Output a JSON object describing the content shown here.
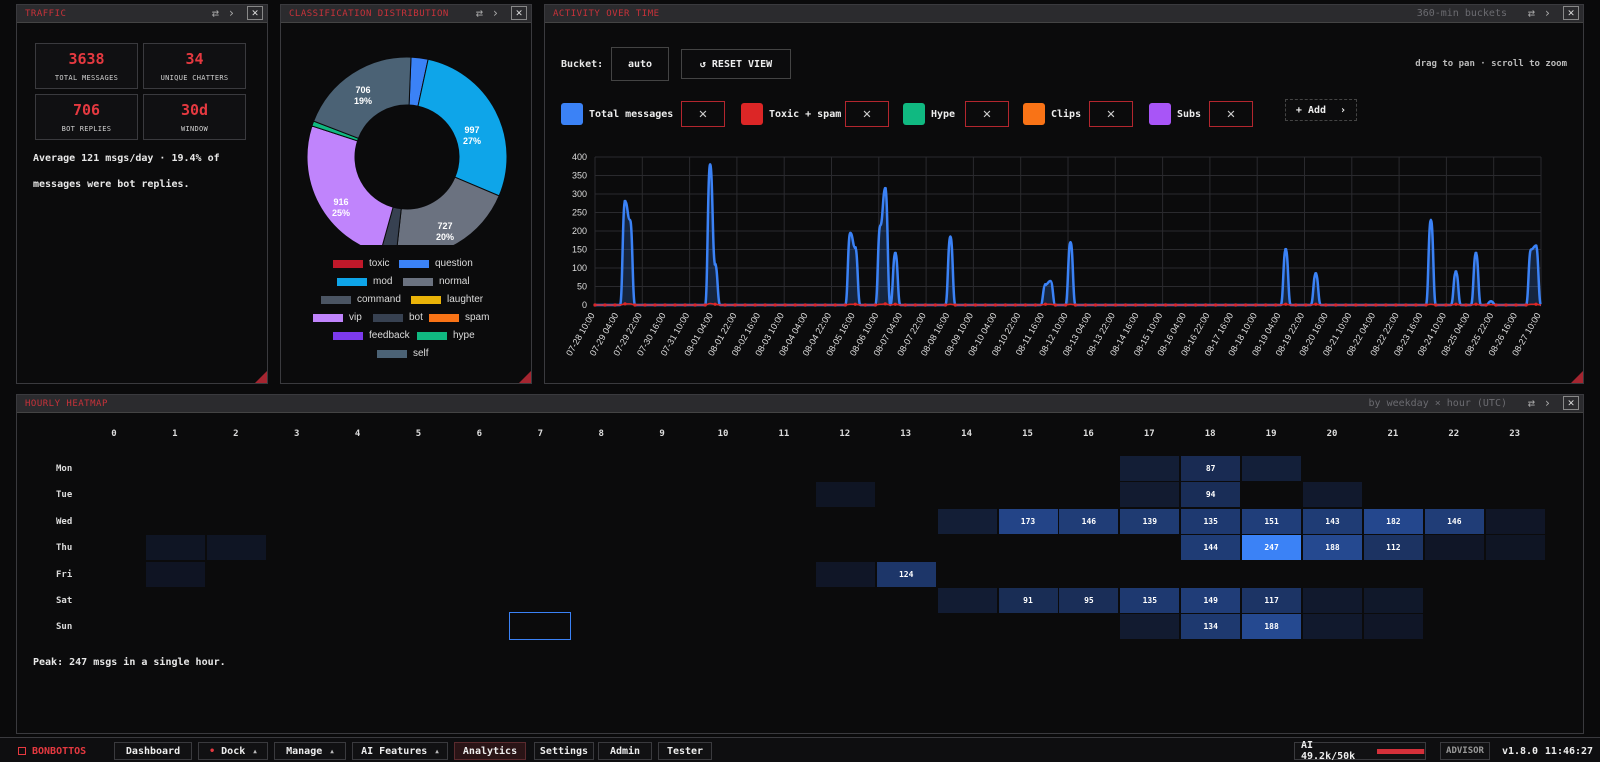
{
  "traffic": {
    "title": "TRAFFIC",
    "stats": [
      {
        "value": "3638",
        "label": "TOTAL MESSAGES"
      },
      {
        "value": "34",
        "label": "UNIQUE CHATTERS"
      },
      {
        "value": "706",
        "label": "BOT REPLIES"
      },
      {
        "value": "30d",
        "label": "WINDOW"
      }
    ],
    "summary_line1": "Average 121 msgs/day · 19.4% of",
    "summary_line2": "messages were bot replies."
  },
  "classification": {
    "title": "CLASSIFICATION DISTRIBUTION",
    "legend": [
      {
        "label": "toxic",
        "color": "#c0182a"
      },
      {
        "label": "question",
        "color": "#3b82f6"
      },
      {
        "label": "mod",
        "color": "#0ea5e9"
      },
      {
        "label": "normal",
        "color": "#6b7280"
      },
      {
        "label": "command",
        "color": "#4b5563"
      },
      {
        "label": "laughter",
        "color": "#eab308"
      },
      {
        "label": "vip",
        "color": "#c084fc"
      },
      {
        "label": "bot",
        "color": "#374151"
      },
      {
        "label": "spam",
        "color": "#f97316"
      },
      {
        "label": "feedback",
        "color": "#7c3aed"
      },
      {
        "label": "hype",
        "color": "#10b981"
      },
      {
        "label": "self",
        "color": "#4b6275"
      }
    ],
    "slice_labels": [
      {
        "count": "997",
        "pct": "27%"
      },
      {
        "count": "727",
        "pct": "20%"
      },
      {
        "count": "916",
        "pct": "25%"
      },
      {
        "count": "706",
        "pct": "19%"
      }
    ]
  },
  "activity": {
    "title": "ACTIVITY OVER TIME",
    "subtitle": "360-min buckets",
    "bucket_label": "Bucket:",
    "bucket_value": "auto",
    "reset_label": "↺ RESET VIEW",
    "hint": "drag to pan · scroll to zoom",
    "add_label": "+ Add",
    "series": [
      {
        "name": "Total messages",
        "color": "#3b82f6"
      },
      {
        "name": "Toxic + spam",
        "color": "#dc2626"
      },
      {
        "name": "Hype",
        "color": "#10b981"
      },
      {
        "name": "Clips",
        "color": "#f97316"
      },
      {
        "name": "Subs",
        "color": "#a855f7"
      }
    ]
  },
  "chart_data": {
    "type": "line",
    "ylim": [
      0,
      400
    ],
    "yticks": [
      "0",
      "50",
      "100",
      "150",
      "200",
      "250",
      "300",
      "350",
      "400"
    ],
    "x_ticks": [
      "07-28 10:00",
      "07-29 04:00",
      "07-29 22:00",
      "07-30 16:00",
      "07-31 10:00",
      "08-01 04:00",
      "08-01 22:00",
      "08-02 16:00",
      "08-03 10:00",
      "08-04 04:00",
      "08-04 22:00",
      "08-05 16:00",
      "08-06 10:00",
      "08-07 04:00",
      "08-07 22:00",
      "08-08 16:00",
      "08-09 10:00",
      "08-10 04:00",
      "08-10 22:00",
      "08-11 16:00",
      "08-12 10:00",
      "08-13 04:00",
      "08-13 22:00",
      "08-14 16:00",
      "08-15 10:00",
      "08-16 04:00",
      "08-16 22:00",
      "08-17 16:00",
      "08-18 10:00",
      "08-19 04:00",
      "08-19 22:00",
      "08-20 16:00",
      "08-21 10:00",
      "08-22 04:00",
      "08-22 22:00",
      "08-23 16:00",
      "08-24 10:00",
      "08-25 04:00",
      "08-25 22:00",
      "08-26 16:00",
      "08-27 10:00"
    ],
    "series": [
      {
        "name": "Total messages",
        "values": [
          0,
          0,
          0,
          0,
          0,
          0,
          280,
          230,
          0,
          0,
          0,
          0,
          0,
          0,
          0,
          0,
          0,
          0,
          0,
          0,
          0,
          0,
          0,
          380,
          110,
          0,
          0,
          0,
          0,
          0,
          0,
          0,
          0,
          0,
          0,
          0,
          0,
          0,
          0,
          0,
          0,
          0,
          0,
          0,
          0,
          0,
          0,
          0,
          0,
          0,
          0,
          195,
          155,
          0,
          0,
          0,
          0,
          215,
          315,
          0,
          140,
          0,
          0,
          0,
          0,
          0,
          0,
          0,
          0,
          0,
          0,
          185,
          0,
          0,
          0,
          0,
          0,
          0,
          0,
          0,
          0,
          0,
          0,
          0,
          0,
          0,
          0,
          0,
          0,
          0,
          55,
          65,
          0,
          0,
          0,
          170,
          0,
          0,
          0,
          0,
          0,
          0,
          0,
          0,
          0,
          0,
          0,
          0,
          0,
          0,
          0,
          0,
          0,
          0,
          0,
          0,
          0,
          0,
          0,
          0,
          0,
          0,
          0,
          0,
          0,
          0,
          0,
          0,
          0,
          0,
          0,
          0,
          0,
          0,
          0,
          0,
          0,
          0,
          150,
          0,
          0,
          0,
          0,
          0,
          85,
          0,
          0,
          0,
          0,
          0,
          0,
          0,
          0,
          0,
          0,
          0,
          0,
          0,
          0,
          0,
          0,
          0,
          0,
          0,
          0,
          0,
          0,
          230,
          0,
          0,
          0,
          0,
          90,
          0,
          0,
          0,
          140,
          0,
          0,
          10,
          0,
          0,
          0,
          0,
          0,
          0,
          0,
          150,
          160,
          0
        ]
      },
      {
        "name": "Toxic + spam",
        "values": [
          0,
          0,
          0,
          0,
          0,
          0,
          3,
          3,
          0,
          0,
          0,
          0,
          0,
          0,
          0,
          0,
          0,
          0,
          0,
          0,
          0,
          0,
          0,
          4,
          2,
          0,
          0,
          0,
          0,
          0,
          0,
          0,
          0,
          0,
          0,
          0,
          0,
          0,
          0,
          0,
          0,
          0,
          0,
          0,
          0,
          0,
          0,
          0,
          0,
          0,
          0,
          2,
          2,
          0,
          0,
          0,
          0,
          2,
          3,
          0,
          2,
          0,
          0,
          0,
          0,
          0,
          0,
          0,
          0,
          0,
          0,
          2,
          0,
          0,
          0,
          0,
          0,
          0,
          0,
          0,
          0,
          0,
          0,
          0,
          0,
          0,
          0,
          0,
          0,
          0,
          2,
          2,
          0,
          0,
          0,
          2,
          0,
          0,
          0,
          0,
          0,
          0,
          0,
          0,
          0,
          0,
          0,
          0,
          0,
          0,
          0,
          0,
          0,
          0,
          0,
          0,
          0,
          0,
          0,
          0,
          0,
          0,
          0,
          0,
          0,
          0,
          0,
          0,
          0,
          0,
          0,
          0,
          0,
          0,
          0,
          0,
          0,
          0,
          2,
          0,
          0,
          0,
          0,
          0,
          2,
          0,
          0,
          0,
          0,
          0,
          0,
          0,
          0,
          0,
          0,
          0,
          0,
          0,
          0,
          0,
          0,
          0,
          0,
          0,
          0,
          0,
          0,
          2,
          0,
          0,
          0,
          0,
          2,
          0,
          0,
          0,
          2,
          0,
          0,
          1,
          0,
          0,
          0,
          0,
          0,
          0,
          0,
          2,
          2,
          0
        ]
      }
    ]
  },
  "heatmap": {
    "title": "HOURLY HEATMAP",
    "subtitle": "by weekday × hour (UTC)",
    "hours": [
      "0",
      "1",
      "2",
      "3",
      "4",
      "5",
      "6",
      "7",
      "8",
      "9",
      "10",
      "11",
      "12",
      "13",
      "14",
      "15",
      "16",
      "17",
      "18",
      "19",
      "20",
      "21",
      "22",
      "23"
    ],
    "days": [
      "Mon",
      "Tue",
      "Wed",
      "Thu",
      "Fri",
      "Sat",
      "Sun"
    ],
    "cells": [
      {
        "day": 0,
        "hour": 17,
        "v": 40
      },
      {
        "day": 0,
        "hour": 18,
        "v": 87,
        "label": "87"
      },
      {
        "day": 0,
        "hour": 19,
        "v": 45
      },
      {
        "day": 1,
        "hour": 12,
        "v": 10
      },
      {
        "day": 1,
        "hour": 17,
        "v": 30
      },
      {
        "day": 1,
        "hour": 18,
        "v": 94,
        "label": "94"
      },
      {
        "day": 1,
        "hour": 20,
        "v": 25
      },
      {
        "day": 2,
        "hour": 14,
        "v": 40
      },
      {
        "day": 2,
        "hour": 15,
        "v": 173,
        "label": "173"
      },
      {
        "day": 2,
        "hour": 16,
        "v": 146,
        "label": "146"
      },
      {
        "day": 2,
        "hour": 17,
        "v": 139,
        "label": "139"
      },
      {
        "day": 2,
        "hour": 18,
        "v": 135,
        "label": "135"
      },
      {
        "day": 2,
        "hour": 19,
        "v": 151,
        "label": "151"
      },
      {
        "day": 2,
        "hour": 20,
        "v": 143,
        "label": "143"
      },
      {
        "day": 2,
        "hour": 21,
        "v": 182,
        "label": "182"
      },
      {
        "day": 2,
        "hour": 22,
        "v": 146,
        "label": "146"
      },
      {
        "day": 2,
        "hour": 23,
        "v": 15
      },
      {
        "day": 3,
        "hour": 1,
        "v": 10
      },
      {
        "day": 3,
        "hour": 2,
        "v": 10
      },
      {
        "day": 3,
        "hour": 18,
        "v": 144,
        "label": "144"
      },
      {
        "day": 3,
        "hour": 19,
        "v": 247,
        "label": "247"
      },
      {
        "day": 3,
        "hour": 20,
        "v": 188,
        "label": "188"
      },
      {
        "day": 3,
        "hour": 21,
        "v": 112,
        "label": "112"
      },
      {
        "day": 3,
        "hour": 22,
        "v": 15
      },
      {
        "day": 3,
        "hour": 23,
        "v": 10
      },
      {
        "day": 4,
        "hour": 1,
        "v": 8
      },
      {
        "day": 4,
        "hour": 12,
        "v": 15
      },
      {
        "day": 4,
        "hour": 13,
        "v": 124,
        "label": "124"
      },
      {
        "day": 5,
        "hour": 14,
        "v": 35
      },
      {
        "day": 5,
        "hour": 15,
        "v": 91,
        "label": "91"
      },
      {
        "day": 5,
        "hour": 16,
        "v": 95,
        "label": "95"
      },
      {
        "day": 5,
        "hour": 17,
        "v": 135,
        "label": "135"
      },
      {
        "day": 5,
        "hour": 18,
        "v": 149,
        "label": "149"
      },
      {
        "day": 5,
        "hour": 19,
        "v": 117,
        "label": "117"
      },
      {
        "day": 5,
        "hour": 20,
        "v": 25
      },
      {
        "day": 5,
        "hour": 21,
        "v": 20
      },
      {
        "day": 6,
        "hour": 17,
        "v": 30
      },
      {
        "day": 6,
        "hour": 18,
        "v": 134,
        "label": "134"
      },
      {
        "day": 6,
        "hour": 19,
        "v": 188,
        "label": "188"
      },
      {
        "day": 6,
        "hour": 20,
        "v": 25
      },
      {
        "day": 6,
        "hour": 21,
        "v": 15
      }
    ],
    "peak_text": "Peak: 247 msgs in a single hour."
  },
  "taskbar": {
    "brand": "BONBOTTOS",
    "items": [
      "Dashboard",
      "Dock",
      "Manage",
      "AI Features",
      "Analytics",
      "Settings",
      "Admin",
      "Tester"
    ],
    "ai_usage": "AI 49.2k/50k",
    "ai_fraction": 0.98,
    "advisor": "ADVISOR",
    "version": "v1.8.0",
    "clock": "11:46:27"
  }
}
